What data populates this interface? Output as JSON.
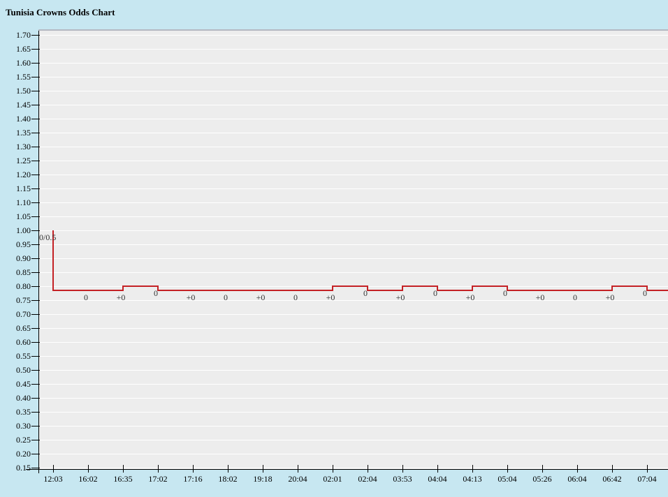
{
  "title": "Tunisia Crowns Odds Chart",
  "colors": {
    "page_bg": "#c7e7f1",
    "plot_bg": "#ededed",
    "grid": "#ffffff",
    "plot_top_border": "#b4b8c2",
    "axis": "#000000",
    "line": "#c42125",
    "point_label": "#333333"
  },
  "chart_data": {
    "type": "line",
    "title": "Tunisia Crowns Odds Chart",
    "step_mode": "step-after",
    "grid": "horizontal",
    "legend": "none",
    "ylim": [
      0.15,
      1.7
    ],
    "y_step": 0.05,
    "y_ticks": [
      "1.70",
      "1.65",
      "1.60",
      "1.55",
      "1.50",
      "1.45",
      "1.40",
      "1.35",
      "1.30",
      "1.25",
      "1.20",
      "1.15",
      "1.10",
      "1.05",
      "1.00",
      "0.95",
      "0.90",
      "0.85",
      "0.80",
      "0.75",
      "0.70",
      "0.65",
      "0.60",
      "0.55",
      "0.50",
      "0.45",
      "0.40",
      "0.35",
      "0.30",
      "0.25",
      "0.20",
      "0.15"
    ],
    "x_categories": [
      "12:03",
      "16:02",
      "16:35",
      "17:02",
      "17:16",
      "18:02",
      "19:18",
      "20:04",
      "02:01",
      "02:04",
      "03:53",
      "04:04",
      "04:13",
      "05:04",
      "05:26",
      "06:04",
      "06:42",
      "07:04"
    ],
    "open_value": 1.0,
    "open_label": "0/0.5",
    "values": [
      0.785,
      0.785,
      0.8,
      0.785,
      0.785,
      0.785,
      0.785,
      0.785,
      0.8,
      0.785,
      0.8,
      0.785,
      0.8,
      0.785,
      0.785,
      0.785,
      0.8,
      0.785
    ],
    "point_labels": [
      "0",
      "+0",
      "0",
      "+0",
      "0",
      "+0",
      "0",
      "+0",
      "0",
      "+0",
      "0",
      "+0",
      "0",
      "+0",
      "0",
      "+0",
      "0"
    ]
  }
}
